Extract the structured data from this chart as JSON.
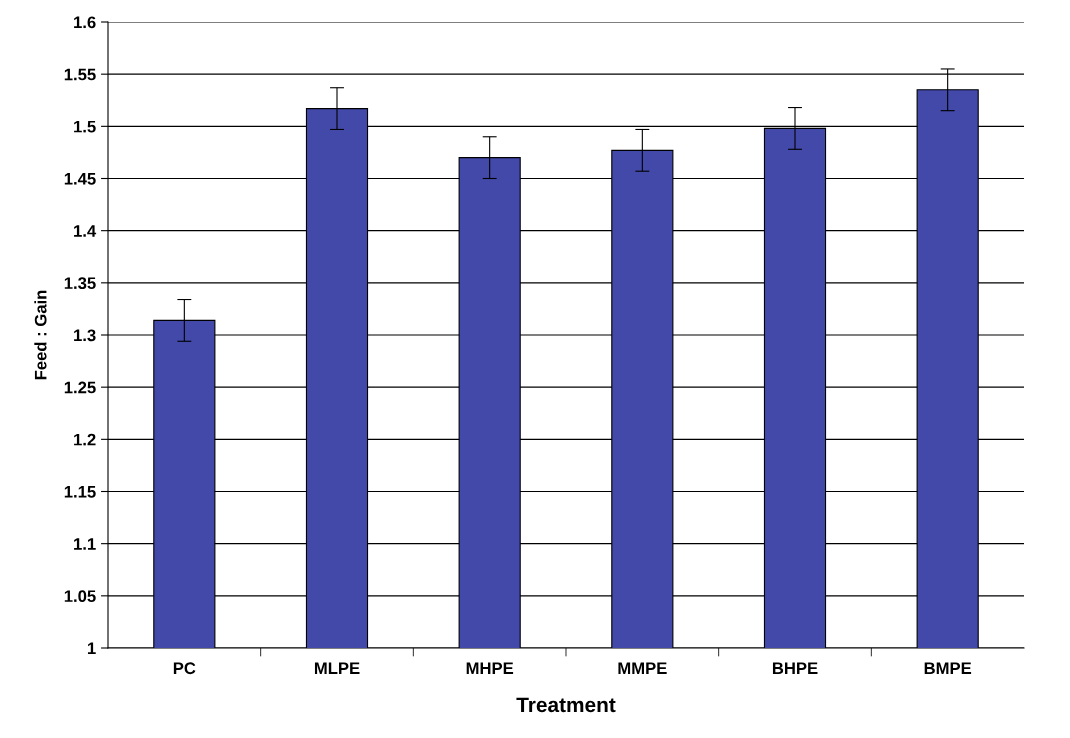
{
  "chart_data": {
    "type": "bar",
    "xlabel": "Treatment",
    "ylabel": "Feed : Gain",
    "categories": [
      "PC",
      "MLPE",
      "MHPE",
      "MMPE",
      "BHPE",
      "BMPE"
    ],
    "values": [
      1.314,
      1.517,
      1.47,
      1.477,
      1.498,
      1.535
    ],
    "errors": [
      0.02,
      0.02,
      0.02,
      0.02,
      0.02,
      0.02
    ],
    "color": "#4349a9",
    "ylim": [
      1,
      1.6
    ],
    "yticks": [
      1,
      1.05,
      1.1,
      1.15,
      1.2,
      1.25,
      1.3,
      1.35,
      1.4,
      1.45,
      1.5,
      1.55,
      1.6
    ],
    "grid": "y",
    "legend": false
  }
}
